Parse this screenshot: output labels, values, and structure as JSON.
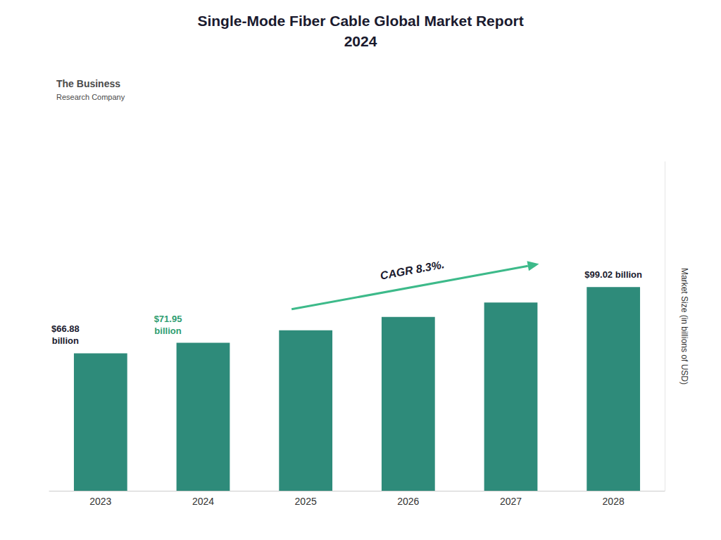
{
  "chart_data": {
    "type": "bar",
    "title": "Single-Mode Fiber Cable Global Market Report",
    "subtitle": "2024",
    "title_color": "#1a1a2e",
    "categories": [
      "2023",
      "2024",
      "2025",
      "2026",
      "2027",
      "2028"
    ],
    "values": [
      66.88,
      71.95,
      78.0,
      84.5,
      91.5,
      99.02
    ],
    "color": "#2e8b7a",
    "ylabel": "Market Size (in billions of USD)",
    "ylim": [
      0,
      160
    ],
    "grid": false,
    "tick_labels": "x",
    "annotations": [
      {
        "text": "$66.88\nbillion",
        "category": "2023",
        "color": "#1a1a2e"
      },
      {
        "text": "$71.95\nbillion",
        "category": "2024",
        "color": "#2e9d70"
      },
      {
        "text": "$99.02 billion",
        "category": "2028",
        "color": "#1a1a2e"
      },
      {
        "text": "CAGR 8.3%.",
        "color": "#1a1a2e",
        "arrow_color": "#3dba8a"
      },
      {
        "text": "The Business",
        "color": "#4a4a4a"
      },
      {
        "text": "Research Company",
        "color": "#4a4a4a"
      }
    ]
  }
}
